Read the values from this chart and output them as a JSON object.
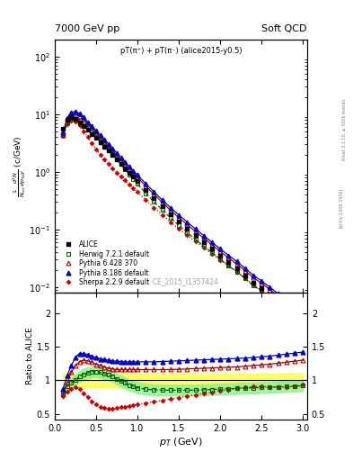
{
  "title_left": "7000 GeV pp",
  "title_right": "Soft QCD",
  "subtitle": "pT(π⁺) + pT(π⁻) (alice2015-y0.5)",
  "watermark": "ALICE_2015_I1357424",
  "ylabel_main": "$\\frac{1}{N_{tot}} \\frac{d^2N}{dp_{Td}y}$ (c/GeV)",
  "ylabel_ratio": "Ratio to ALICE",
  "xlabel": "$p_T$ (GeV)",
  "xlim": [
    0,
    3.05
  ],
  "ylim_main": [
    0.008,
    200
  ],
  "ylim_ratio": [
    0.42,
    2.3
  ],
  "pt_alice": [
    0.1,
    0.15,
    0.2,
    0.25,
    0.3,
    0.35,
    0.4,
    0.45,
    0.5,
    0.55,
    0.6,
    0.65,
    0.7,
    0.75,
    0.8,
    0.85,
    0.9,
    0.95,
    1.0,
    1.1,
    1.2,
    1.3,
    1.4,
    1.5,
    1.6,
    1.7,
    1.8,
    1.9,
    2.0,
    2.1,
    2.2,
    2.3,
    2.4,
    2.5,
    2.6,
    2.7,
    2.8,
    2.9,
    3.0
  ],
  "alice_vals": [
    5.5,
    8.0,
    8.8,
    8.3,
    7.3,
    6.3,
    5.3,
    4.55,
    3.85,
    3.28,
    2.75,
    2.32,
    1.95,
    1.64,
    1.38,
    1.16,
    0.97,
    0.82,
    0.69,
    0.49,
    0.35,
    0.255,
    0.185,
    0.138,
    0.104,
    0.079,
    0.06,
    0.046,
    0.035,
    0.027,
    0.021,
    0.016,
    0.012,
    0.0095,
    0.0073,
    0.0056,
    0.0044,
    0.0034,
    0.0027
  ],
  "herwig_ratio": [
    0.83,
    0.91,
    0.96,
    1.01,
    1.06,
    1.09,
    1.11,
    1.13,
    1.13,
    1.12,
    1.1,
    1.08,
    1.06,
    1.02,
    0.99,
    0.96,
    0.93,
    0.91,
    0.89,
    0.87,
    0.86,
    0.855,
    0.855,
    0.855,
    0.855,
    0.855,
    0.86,
    0.865,
    0.87,
    0.875,
    0.88,
    0.885,
    0.89,
    0.895,
    0.9,
    0.905,
    0.91,
    0.915,
    0.92
  ],
  "pythia6_ratio": [
    0.8,
    0.96,
    1.12,
    1.22,
    1.28,
    1.3,
    1.29,
    1.27,
    1.24,
    1.22,
    1.2,
    1.18,
    1.17,
    1.16,
    1.16,
    1.16,
    1.16,
    1.16,
    1.16,
    1.16,
    1.16,
    1.16,
    1.16,
    1.165,
    1.17,
    1.175,
    1.18,
    1.185,
    1.19,
    1.195,
    1.2,
    1.21,
    1.22,
    1.23,
    1.24,
    1.255,
    1.27,
    1.285,
    1.3
  ],
  "pythia8_ratio": [
    0.87,
    1.07,
    1.22,
    1.34,
    1.4,
    1.4,
    1.38,
    1.36,
    1.34,
    1.32,
    1.31,
    1.3,
    1.29,
    1.285,
    1.28,
    1.275,
    1.275,
    1.275,
    1.275,
    1.275,
    1.275,
    1.28,
    1.285,
    1.29,
    1.295,
    1.3,
    1.305,
    1.31,
    1.315,
    1.32,
    1.325,
    1.33,
    1.34,
    1.35,
    1.36,
    1.375,
    1.39,
    1.405,
    1.42
  ],
  "sherpa_ratio": [
    0.76,
    0.83,
    0.87,
    0.9,
    0.87,
    0.81,
    0.75,
    0.69,
    0.64,
    0.61,
    0.59,
    0.585,
    0.585,
    0.59,
    0.6,
    0.61,
    0.62,
    0.63,
    0.645,
    0.665,
    0.685,
    0.705,
    0.725,
    0.745,
    0.765,
    0.785,
    0.805,
    0.825,
    0.845,
    0.865,
    0.88,
    0.895,
    0.91,
    0.915,
    0.905,
    0.895,
    0.9,
    0.915,
    0.935
  ],
  "herwig_band_low": [
    0.73,
    0.83,
    0.88,
    0.94,
    0.98,
    1.01,
    1.03,
    1.05,
    1.05,
    1.04,
    1.02,
    1.0,
    0.98,
    0.94,
    0.91,
    0.88,
    0.85,
    0.83,
    0.81,
    0.79,
    0.78,
    0.775,
    0.775,
    0.775,
    0.775,
    0.775,
    0.78,
    0.785,
    0.79,
    0.795,
    0.8,
    0.805,
    0.81,
    0.815,
    0.82,
    0.825,
    0.83,
    0.835,
    0.84
  ],
  "herwig_band_high": [
    0.93,
    0.99,
    1.04,
    1.08,
    1.14,
    1.17,
    1.19,
    1.21,
    1.21,
    1.2,
    1.18,
    1.16,
    1.14,
    1.1,
    1.07,
    1.04,
    1.01,
    0.99,
    0.97,
    0.95,
    0.94,
    0.935,
    0.935,
    0.935,
    0.935,
    0.935,
    0.94,
    0.945,
    0.95,
    0.955,
    0.96,
    0.965,
    0.97,
    0.975,
    0.98,
    0.985,
    0.99,
    0.995,
    1.0
  ],
  "alice_uncertainty_low": 0.9,
  "alice_uncertainty_high": 1.1,
  "alice_color": "#000000",
  "herwig_color": "#006600",
  "pythia6_color": "#aa0000",
  "pythia8_color": "#0000cc",
  "sherpa_color": "#cc0000"
}
